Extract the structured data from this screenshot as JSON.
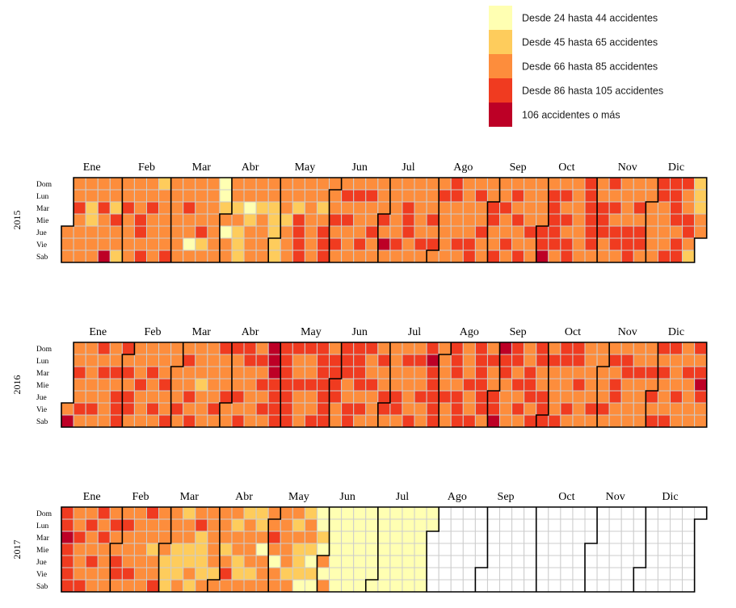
{
  "chart_data": {
    "type": "heatmap",
    "title": "",
    "years": [
      "2015",
      "2016",
      "2017"
    ],
    "months": [
      "Ene",
      "Feb",
      "Mar",
      "Abr",
      "May",
      "Jun",
      "Jul",
      "Ago",
      "Sep",
      "Oct",
      "Nov",
      "Dic"
    ],
    "weekdays": [
      "Dom",
      "Lun",
      "Mar",
      "Mie",
      "Jue",
      "Vie",
      "Sab"
    ],
    "legend": {
      "placement": "top-right",
      "items": [
        {
          "label": "Desde 24 hasta 44 accidentes",
          "color": "#FFFFB2"
        },
        {
          "label": "Desde 45 hasta 65 accidentes",
          "color": "#FECC5C"
        },
        {
          "label": "Desde 66 hasta 85 accidentes",
          "color": "#FD8D3C"
        },
        {
          "label": "Desde 86 hasta 105 accidentes",
          "color": "#F03B20"
        },
        {
          "label": "106 accidentes o más",
          "color": "#BD0026"
        }
      ]
    },
    "empty_color": "#FFFFFF",
    "cell_border": "#cccccc",
    "data_end": {
      "2017": "2017-07-31"
    },
    "category_by_week": {
      "2015": [
        "X2222222",
        "2232222",
        "2211222",
        "2232224",
        "2213221",
        "2232222",
        "2223323",
        "2232222",
        "1222223",
        "2222222",
        "2232202",
        "2222312",
        "2222222",
        "0012022",
        "2212111",
        "2201222",
        "2212222",
        "2211111",
        "2221222",
        "2213333",
        "2222222",
        "2212333",
        "2223232",
        "2323222",
        "2322232",
        "2322322",
        "2223242",
        "2222232",
        "2233322",
        "2222232",
        "2223232",
        "2322222",
        "3322232",
        "2222233",
        "2322322",
        "2233223",
        "2232232",
        "2323223",
        "2222322",
        "2222334",
        "2333332",
        "2323233",
        "2222222",
        "3333332",
        "2233322",
        "3232332",
        "2222333",
        "2232332",
        "2222222",
        "3322223",
        "3333233",
        "3223321",
        "111XXXXX"
      ],
      "2016": [
        "XXXXXX4",
        "2232232",
        "2222232",
        "3232222",
        "2232333",
        "3232332",
        "2223222",
        "2232232",
        "2223223",
        "2222232",
        "2322323",
        "2221222",
        "2222232",
        "3222322",
        "3222323",
        "3322222",
        "2323232",
        "4443333",
        "3333333",
        "3223222",
        "3223223",
        "3333333",
        "2333322",
        "3332233",
        "3333232",
        "3223222",
        "2322332",
        "2222332",
        "2322223",
        "2322322",
        "3433333",
        "2222322",
        "3332333",
        "2223223",
        "3333332",
        "2322334",
        "4332222",
        "3323232",
        "2233323",
        "3322333",
        "2322223",
        "3322232",
        "3323222",
        "2222232",
        "2222232",
        "2323322",
        "2332222",
        "2232222",
        "2232323",
        "3232223",
        "3222322",
        "2232222",
        "3234322"
      ],
      "2017": [
        "3343333",
        "2232223",
        "2322322",
        "3232222",
        "2322332",
        "2322232",
        "2222222",
        "3221223",
        "2222111",
        "2221112",
        "1221121",
        "2311112",
        "2222212",
        "2221232",
        "2122112",
        "1222212",
        "1120222",
        "2232022",
        "2222212",
        "2121110",
        "1221010",
        "0010202",
        "0000000",
        "0000000",
        "0000000",
        "0000000",
        "0000000",
        "0000000",
        "0000000",
        "0000000",
        "0000000",
        "XXXXXXXX"
      ]
    }
  }
}
